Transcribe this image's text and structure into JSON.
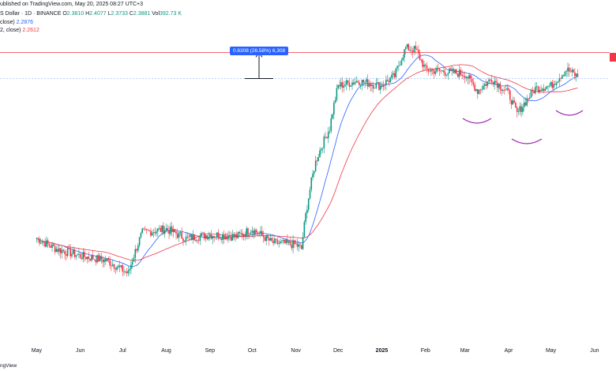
{
  "header": {
    "published": "ublished on TradingView.com, May 20, 2025 08:27 UTC+3",
    "symbol": "S Dollar · 1D · BINANCE",
    "ohlc": {
      "o": "2.3810",
      "h": "2.4077",
      "l": "2.3733",
      "c": "2.3881",
      "vol": "392.73 K"
    },
    "ma1_label": "close)",
    "ma1_value": "2.2876",
    "ma2_label": "2, close)",
    "ma2_value": "2.2612"
  },
  "measure_label": "0.6308 (26.58%) 6,308",
  "footer_logo": "ngView",
  "colors": {
    "up": "#089981",
    "down": "#f23645",
    "ma_fast": "#2962ff",
    "ma_slow": "#f23645",
    "resistance": "#f23645",
    "support": "#8ab4f8",
    "pattern": "#9c27b0"
  },
  "chart_data": {
    "type": "candlestick",
    "x_ticks": [
      "May",
      "Jun",
      "Jul",
      "Aug",
      "Sep",
      "Oct",
      "Nov",
      "Dec",
      "2025",
      "Feb",
      "Mar",
      "Apr",
      "May",
      "Jun"
    ],
    "ylim": [
      0.22,
      3.6
    ],
    "resistance_level": 2.98,
    "support_level": 2.35,
    "measure": {
      "from": 2.35,
      "to": 2.98
    },
    "series": [
      {
        "name": "price",
        "points": [
          [
            "2024-05-01",
            0.55
          ],
          [
            "2024-05-15",
            0.5
          ],
          [
            "2024-06-01",
            0.47
          ],
          [
            "2024-06-20",
            0.45
          ],
          [
            "2024-07-05",
            0.4
          ],
          [
            "2024-07-15",
            0.58
          ],
          [
            "2024-08-01",
            0.6
          ],
          [
            "2024-08-15",
            0.55
          ],
          [
            "2024-09-01",
            0.57
          ],
          [
            "2024-09-20",
            0.56
          ],
          [
            "2024-10-01",
            0.6
          ],
          [
            "2024-10-15",
            0.53
          ],
          [
            "2024-11-01",
            0.52
          ],
          [
            "2024-11-05",
            0.5
          ],
          [
            "2024-11-15",
            1.1
          ],
          [
            "2024-11-25",
            1.5
          ],
          [
            "2024-12-01",
            2.2
          ],
          [
            "2024-12-15",
            2.3
          ],
          [
            "2024-12-31",
            2.2
          ],
          [
            "2025-01-10",
            2.4
          ],
          [
            "2025-01-18",
            3.1
          ],
          [
            "2025-01-25",
            3.05
          ],
          [
            "2025-02-01",
            2.55
          ],
          [
            "2025-02-15",
            2.5
          ],
          [
            "2025-03-01",
            2.45
          ],
          [
            "2025-03-10",
            2.1
          ],
          [
            "2025-03-20",
            2.35
          ],
          [
            "2025-04-01",
            2.05
          ],
          [
            "2025-04-07",
            1.7
          ],
          [
            "2025-04-20",
            2.15
          ],
          [
            "2025-05-01",
            2.2
          ],
          [
            "2025-05-12",
            2.55
          ],
          [
            "2025-05-20",
            2.39
          ]
        ]
      }
    ]
  }
}
